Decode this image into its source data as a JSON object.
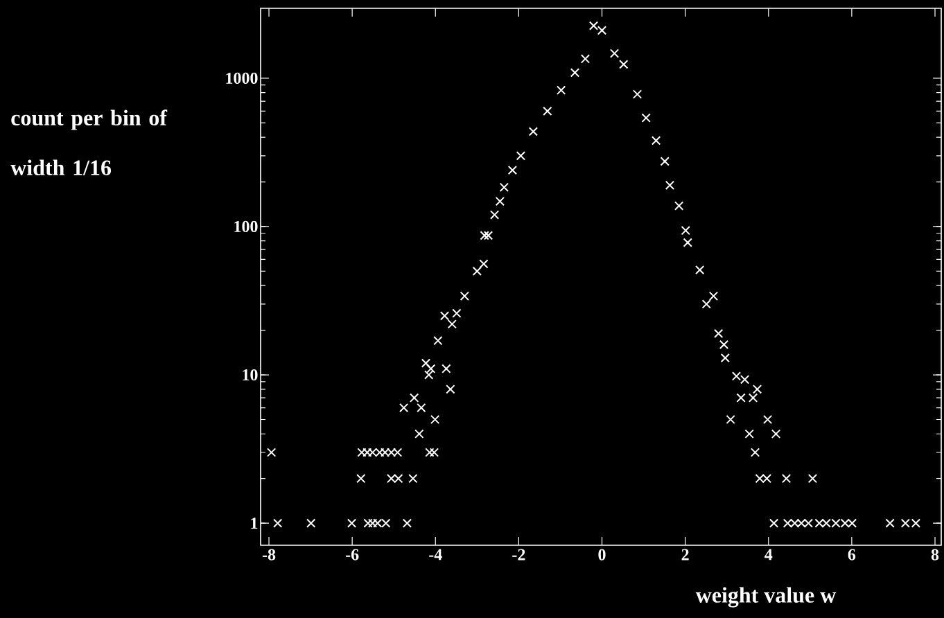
{
  "chart_data": {
    "type": "scatter",
    "xlabel": "weight value w",
    "ylabel": "count per bin of width 1/16",
    "log": "y",
    "marker": "cross",
    "color": "#ffffff",
    "x": [
      -7.94,
      -7.79,
      -6.99,
      -6.01,
      -5.79,
      -5.77,
      -5.64,
      -5.62,
      -5.51,
      -5.51,
      -5.39,
      -5.34,
      -5.21,
      -5.19,
      -5.06,
      -5.06,
      -4.91,
      -4.89,
      -4.76,
      -4.68,
      -4.54,
      -4.51,
      -4.39,
      -4.34,
      -4.23,
      -4.16,
      -4.14,
      -4.11,
      -4.03,
      -4.01,
      -3.94,
      -3.78,
      -3.74,
      -3.64,
      -3.6,
      -3.49,
      -3.3,
      -3.0,
      -2.84,
      -2.82,
      -2.73,
      -2.58,
      -2.45,
      -2.35,
      -2.15,
      -1.95,
      -1.65,
      -1.31,
      -0.98,
      -0.65,
      -0.4,
      -0.2,
      0.0,
      0.3,
      0.52,
      0.85,
      1.06,
      1.3,
      1.51,
      1.63,
      1.85,
      2.01,
      2.06,
      2.35,
      2.51,
      2.68,
      2.8,
      2.93,
      2.96,
      3.09,
      3.23,
      3.34,
      3.43,
      3.54,
      3.63,
      3.68,
      3.73,
      3.79,
      3.96,
      3.98,
      4.13,
      4.18,
      4.43,
      4.46,
      4.63,
      4.79,
      4.96,
      5.06,
      5.22,
      5.39,
      5.62,
      5.84,
      6.01,
      6.92,
      7.29,
      7.54
    ],
    "values": [
      3,
      1,
      1,
      1,
      2,
      3,
      3,
      1,
      3,
      1,
      1,
      3,
      3,
      1,
      3,
      2,
      3,
      2,
      6,
      1,
      2,
      7,
      4,
      6,
      12,
      10,
      3,
      11,
      3,
      5,
      17,
      25,
      11,
      8,
      22,
      26,
      34,
      50,
      56,
      87,
      87,
      120,
      148,
      184,
      240,
      300,
      437,
      600,
      830,
      1090,
      1350,
      2260,
      2100,
      1470,
      1240,
      780,
      540,
      380,
      275,
      190,
      138,
      94,
      78,
      51,
      30,
      34,
      19,
      16,
      13,
      5,
      9.8,
      7,
      9.3,
      4,
      7,
      3,
      8,
      2,
      2,
      5,
      1,
      4,
      2,
      1,
      1,
      1,
      1,
      2,
      1,
      1,
      1,
      1,
      1,
      1,
      1,
      1
    ],
    "xlim": [
      -8.2,
      8.15
    ],
    "ylim": [
      0.71,
      2960
    ],
    "xticks": [
      -8,
      -6,
      -4,
      -2,
      0,
      2,
      4,
      6,
      8
    ],
    "yticks": [
      1,
      10,
      100,
      1000
    ]
  }
}
